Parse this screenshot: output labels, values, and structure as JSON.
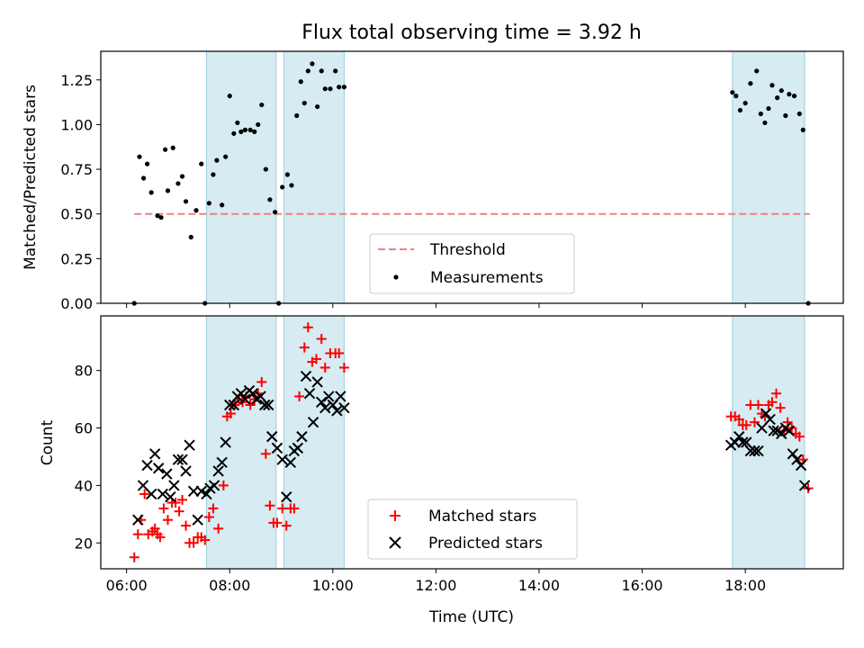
{
  "figure": {
    "title": "Flux total observing time = 3.92 h"
  },
  "chart_data": [
    {
      "type": "scatter",
      "ylabel": "Matched/Predicted stars",
      "xlim": [
        5.5,
        19.9
      ],
      "ylim": [
        0,
        1.41
      ],
      "x_ticks": [
        6,
        8,
        10,
        12,
        14,
        16,
        18
      ],
      "x_tick_labels": [
        "06:00",
        "08:00",
        "10:00",
        "12:00",
        "14:00",
        "16:00",
        "18:00"
      ],
      "y_ticks": [
        0,
        0.25,
        0.5,
        0.75,
        1.0,
        1.25
      ],
      "y_tick_labels": [
        "0.00",
        "0.25",
        "0.50",
        "0.75",
        "1.00",
        "1.25"
      ],
      "shaded_intervals": [
        [
          7.55,
          8.9
        ],
        [
          9.05,
          10.22
        ],
        [
          17.75,
          19.15
        ]
      ],
      "threshold": {
        "name": "Threshold",
        "value": 0.5,
        "x_range": [
          6.15,
          19.25
        ],
        "color": "#f08080"
      },
      "legend_position": "bottom-center",
      "series": [
        {
          "name": "Measurements",
          "marker": "dot",
          "color": "#000000",
          "points": [
            [
              6.15,
              0.0
            ],
            [
              6.25,
              0.82
            ],
            [
              6.33,
              0.7
            ],
            [
              6.4,
              0.78
            ],
            [
              6.48,
              0.62
            ],
            [
              6.6,
              0.49
            ],
            [
              6.67,
              0.48
            ],
            [
              6.75,
              0.86
            ],
            [
              6.8,
              0.63
            ],
            [
              6.9,
              0.87
            ],
            [
              7.0,
              0.67
            ],
            [
              7.08,
              0.71
            ],
            [
              7.15,
              0.57
            ],
            [
              7.25,
              0.37
            ],
            [
              7.35,
              0.52
            ],
            [
              7.45,
              0.78
            ],
            [
              7.52,
              0.0
            ],
            [
              7.6,
              0.56
            ],
            [
              7.68,
              0.72
            ],
            [
              7.75,
              0.8
            ],
            [
              7.85,
              0.55
            ],
            [
              7.92,
              0.82
            ],
            [
              8.0,
              1.16
            ],
            [
              8.08,
              0.95
            ],
            [
              8.15,
              1.01
            ],
            [
              8.22,
              0.96
            ],
            [
              8.3,
              0.97
            ],
            [
              8.4,
              0.97
            ],
            [
              8.48,
              0.96
            ],
            [
              8.55,
              1.0
            ],
            [
              8.62,
              1.11
            ],
            [
              8.7,
              0.75
            ],
            [
              8.78,
              0.58
            ],
            [
              8.88,
              0.51
            ],
            [
              8.95,
              0.0
            ],
            [
              9.02,
              0.65
            ],
            [
              9.12,
              0.72
            ],
            [
              9.2,
              0.66
            ],
            [
              9.3,
              1.05
            ],
            [
              9.38,
              1.24
            ],
            [
              9.45,
              1.12
            ],
            [
              9.52,
              1.3
            ],
            [
              9.6,
              1.34
            ],
            [
              9.7,
              1.1
            ],
            [
              9.78,
              1.3
            ],
            [
              9.85,
              1.2
            ],
            [
              9.95,
              1.2
            ],
            [
              10.05,
              1.3
            ],
            [
              10.12,
              1.21
            ],
            [
              10.22,
              1.21
            ],
            [
              17.75,
              1.18
            ],
            [
              17.82,
              1.16
            ],
            [
              17.9,
              1.08
            ],
            [
              18.0,
              1.12
            ],
            [
              18.1,
              1.23
            ],
            [
              18.22,
              1.3
            ],
            [
              18.3,
              1.06
            ],
            [
              18.38,
              1.01
            ],
            [
              18.45,
              1.09
            ],
            [
              18.52,
              1.22
            ],
            [
              18.62,
              1.15
            ],
            [
              18.7,
              1.19
            ],
            [
              18.78,
              1.05
            ],
            [
              18.85,
              1.17
            ],
            [
              18.95,
              1.16
            ],
            [
              19.05,
              1.06
            ],
            [
              19.12,
              0.97
            ],
            [
              19.22,
              0.0
            ]
          ]
        }
      ]
    },
    {
      "type": "scatter",
      "xlabel": "Time (UTC)",
      "ylabel": "Count",
      "xlim": [
        5.5,
        19.9
      ],
      "ylim": [
        11,
        99
      ],
      "x_ticks": [
        6,
        8,
        10,
        12,
        14,
        16,
        18
      ],
      "x_tick_labels": [
        "06:00",
        "08:00",
        "10:00",
        "12:00",
        "14:00",
        "16:00",
        "18:00"
      ],
      "y_ticks": [
        20,
        40,
        60,
        80
      ],
      "y_tick_labels": [
        "20",
        "40",
        "60",
        "80"
      ],
      "shaded_intervals": [
        [
          7.55,
          8.9
        ],
        [
          9.05,
          10.22
        ],
        [
          17.75,
          19.15
        ]
      ],
      "legend_position": "bottom-center",
      "series": [
        {
          "name": "Matched stars",
          "marker": "plus",
          "color": "#ff0000",
          "points": [
            [
              6.15,
              15
            ],
            [
              6.22,
              23
            ],
            [
              6.28,
              28
            ],
            [
              6.35,
              37
            ],
            [
              6.42,
              23
            ],
            [
              6.5,
              24
            ],
            [
              6.55,
              25
            ],
            [
              6.6,
              23
            ],
            [
              6.65,
              22
            ],
            [
              6.72,
              32
            ],
            [
              6.8,
              28
            ],
            [
              6.88,
              34
            ],
            [
              6.95,
              34
            ],
            [
              7.02,
              31
            ],
            [
              7.08,
              35
            ],
            [
              7.15,
              26
            ],
            [
              7.22,
              20
            ],
            [
              7.3,
              20
            ],
            [
              7.38,
              22
            ],
            [
              7.45,
              22
            ],
            [
              7.52,
              21
            ],
            [
              7.6,
              29
            ],
            [
              7.68,
              32
            ],
            [
              7.78,
              25
            ],
            [
              7.88,
              40
            ],
            [
              7.95,
              64
            ],
            [
              8.02,
              65
            ],
            [
              8.1,
              68
            ],
            [
              8.18,
              70
            ],
            [
              8.25,
              69
            ],
            [
              8.32,
              71
            ],
            [
              8.4,
              68
            ],
            [
              8.48,
              70
            ],
            [
              8.55,
              72
            ],
            [
              8.62,
              76
            ],
            [
              8.7,
              51
            ],
            [
              8.78,
              33
            ],
            [
              8.85,
              27
            ],
            [
              8.92,
              27
            ],
            [
              9.02,
              32
            ],
            [
              9.1,
              26
            ],
            [
              9.18,
              32
            ],
            [
              9.25,
              32
            ],
            [
              9.35,
              71
            ],
            [
              9.45,
              88
            ],
            [
              9.52,
              95
            ],
            [
              9.6,
              83
            ],
            [
              9.68,
              84
            ],
            [
              9.78,
              91
            ],
            [
              9.85,
              81
            ],
            [
              9.95,
              86
            ],
            [
              10.05,
              86
            ],
            [
              10.12,
              86
            ],
            [
              10.22,
              81
            ],
            [
              17.72,
              64
            ],
            [
              17.8,
              64
            ],
            [
              17.88,
              63
            ],
            [
              17.95,
              61
            ],
            [
              18.02,
              61
            ],
            [
              18.1,
              68
            ],
            [
              18.18,
              62
            ],
            [
              18.25,
              68
            ],
            [
              18.32,
              65
            ],
            [
              18.38,
              64
            ],
            [
              18.45,
              68
            ],
            [
              18.52,
              69
            ],
            [
              18.6,
              72
            ],
            [
              18.68,
              67
            ],
            [
              18.75,
              59
            ],
            [
              18.82,
              62
            ],
            [
              18.9,
              60
            ],
            [
              18.98,
              58
            ],
            [
              19.05,
              57
            ],
            [
              19.12,
              49
            ],
            [
              19.22,
              39
            ]
          ]
        },
        {
          "name": "Predicted stars",
          "marker": "cross",
          "color": "#000000",
          "points": [
            [
              6.22,
              28
            ],
            [
              6.32,
              40
            ],
            [
              6.4,
              47
            ],
            [
              6.48,
              37
            ],
            [
              6.55,
              51
            ],
            [
              6.62,
              46
            ],
            [
              6.7,
              37
            ],
            [
              6.78,
              44
            ],
            [
              6.85,
              36
            ],
            [
              6.92,
              40
            ],
            [
              7.0,
              49
            ],
            [
              7.08,
              49
            ],
            [
              7.15,
              45
            ],
            [
              7.22,
              54
            ],
            [
              7.3,
              38
            ],
            [
              7.38,
              28
            ],
            [
              7.45,
              38
            ],
            [
              7.55,
              37
            ],
            [
              7.62,
              39
            ],
            [
              7.7,
              40
            ],
            [
              7.78,
              45
            ],
            [
              7.85,
              48
            ],
            [
              7.92,
              55
            ],
            [
              8.0,
              68
            ],
            [
              8.08,
              68
            ],
            [
              8.15,
              71
            ],
            [
              8.22,
              72
            ],
            [
              8.3,
              70
            ],
            [
              8.38,
              73
            ],
            [
              8.45,
              72
            ],
            [
              8.52,
              70
            ],
            [
              8.6,
              71
            ],
            [
              8.68,
              68
            ],
            [
              8.75,
              68
            ],
            [
              8.82,
              57
            ],
            [
              8.92,
              53
            ],
            [
              9.02,
              49
            ],
            [
              9.1,
              36
            ],
            [
              9.18,
              48
            ],
            [
              9.25,
              52
            ],
            [
              9.32,
              53
            ],
            [
              9.4,
              57
            ],
            [
              9.48,
              78
            ],
            [
              9.55,
              72
            ],
            [
              9.62,
              62
            ],
            [
              9.7,
              76
            ],
            [
              9.78,
              69
            ],
            [
              9.85,
              67
            ],
            [
              9.92,
              71
            ],
            [
              10.0,
              68
            ],
            [
              10.08,
              66
            ],
            [
              10.15,
              71
            ],
            [
              10.22,
              67
            ],
            [
              17.72,
              54
            ],
            [
              17.8,
              55
            ],
            [
              17.88,
              57
            ],
            [
              17.95,
              55
            ],
            [
              18.02,
              55
            ],
            [
              18.1,
              52
            ],
            [
              18.18,
              52
            ],
            [
              18.25,
              52
            ],
            [
              18.32,
              60
            ],
            [
              18.4,
              65
            ],
            [
              18.48,
              63
            ],
            [
              18.55,
              59
            ],
            [
              18.62,
              59
            ],
            [
              18.7,
              58
            ],
            [
              18.78,
              60
            ],
            [
              18.85,
              59
            ],
            [
              18.92,
              51
            ],
            [
              19.0,
              49
            ],
            [
              19.08,
              47
            ],
            [
              19.15,
              40
            ]
          ]
        }
      ]
    }
  ]
}
